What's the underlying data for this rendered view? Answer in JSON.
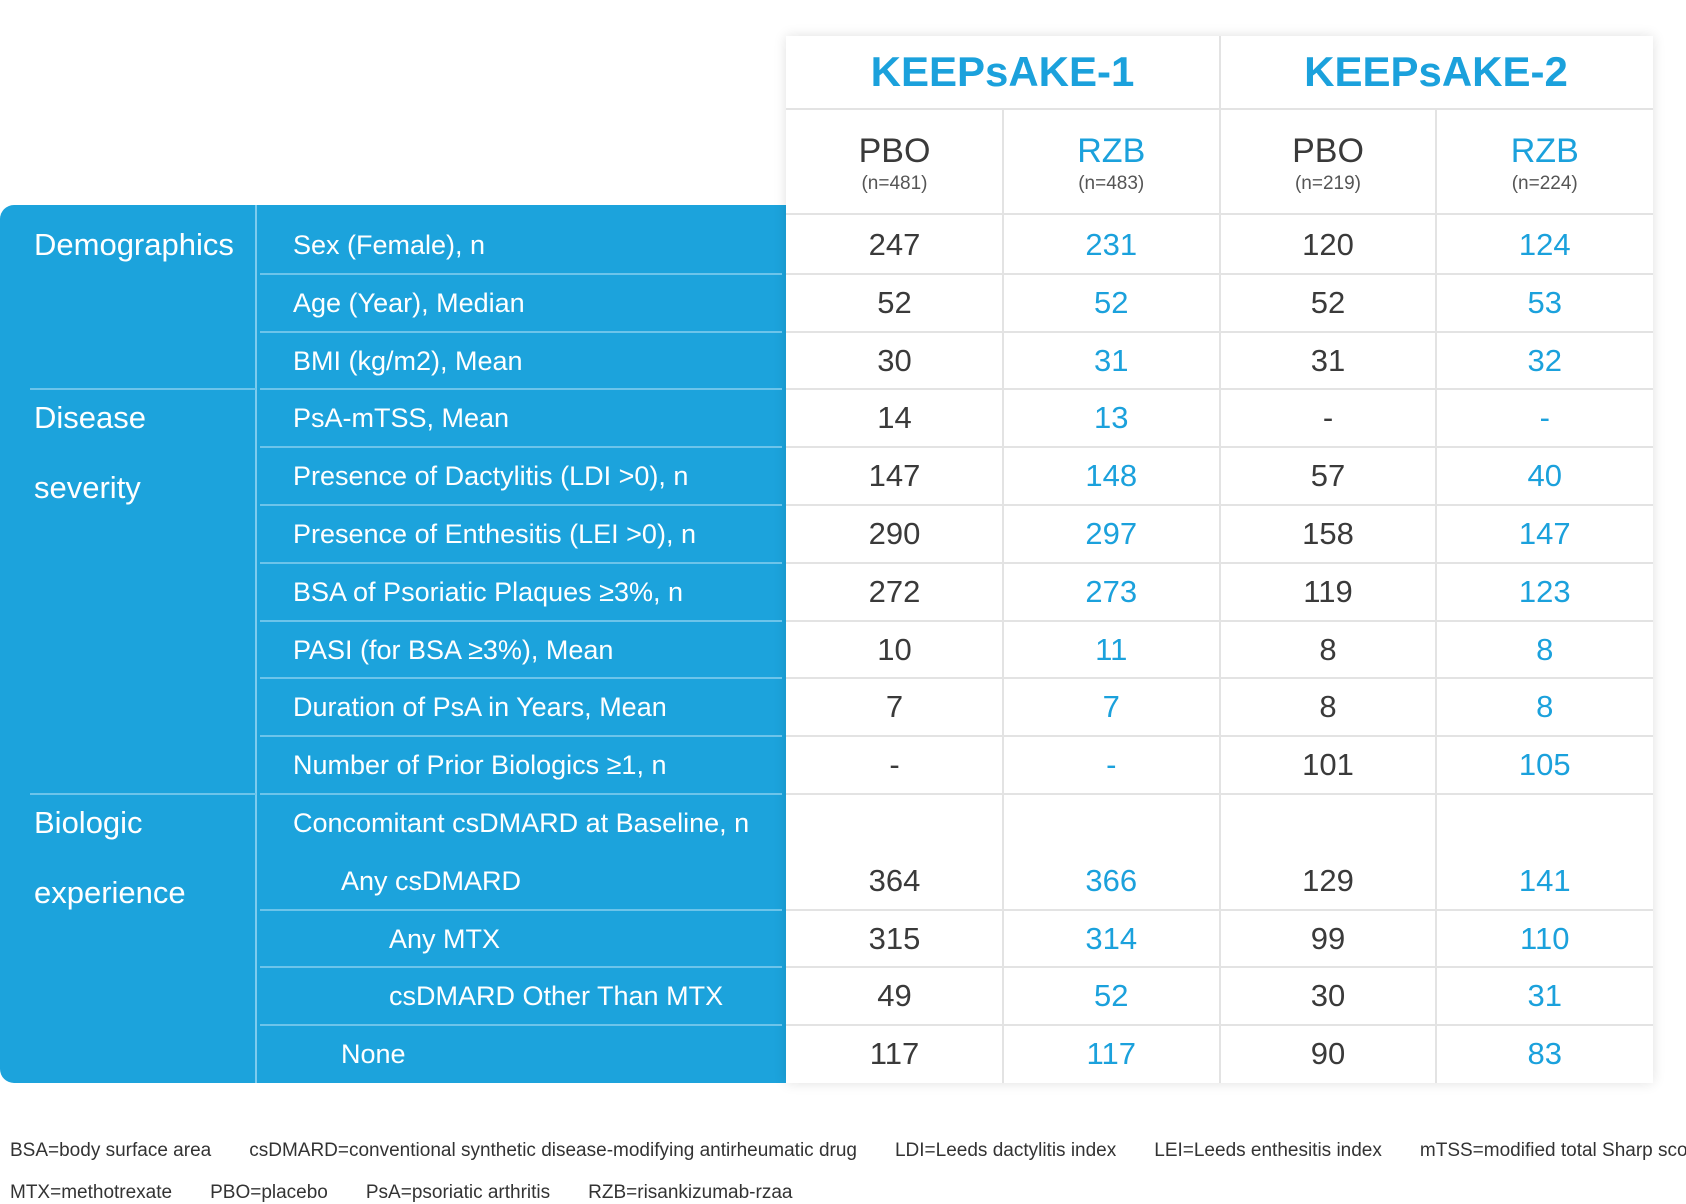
{
  "header": {
    "studies": [
      "KEEPsAKE-1",
      "KEEPsAKE-2"
    ],
    "arms": [
      {
        "name": "PBO",
        "n": "(n=481)",
        "color": "#3a3a3a"
      },
      {
        "name": "RZB",
        "n": "(n=483)",
        "color": "#1ba1dc"
      },
      {
        "name": "PBO",
        "n": "(n=219)",
        "color": "#3a3a3a"
      },
      {
        "name": "RZB",
        "n": "(n=224)",
        "color": "#1ba1dc"
      }
    ]
  },
  "table": {
    "sections": [
      {
        "title": "Demographics",
        "rows": [
          {
            "label": "Sex (Female), n",
            "indent": 0,
            "values": [
              247,
              231,
              120,
              124
            ]
          },
          {
            "label": "Age (Year), Median",
            "indent": 0,
            "values": [
              52,
              52,
              52,
              53
            ]
          },
          {
            "label": "BMI (kg/m2), Mean",
            "indent": 0,
            "values": [
              30,
              31,
              31,
              32
            ]
          }
        ]
      },
      {
        "title": "Disease severity",
        "rows": [
          {
            "label": "PsA-mTSS, Mean",
            "indent": 0,
            "values": [
              14,
              13,
              "-",
              "-"
            ]
          },
          {
            "label": "Presence of Dactylitis (LDI >0), n",
            "indent": 0,
            "values": [
              147,
              148,
              57,
              40
            ]
          },
          {
            "label": "Presence of Enthesitis (LEI >0), n",
            "indent": 0,
            "values": [
              290,
              297,
              158,
              147
            ]
          },
          {
            "label": "BSA of Psoriatic Plaques ≥3%, n",
            "indent": 0,
            "values": [
              272,
              273,
              119,
              123
            ]
          },
          {
            "label": "PASI (for BSA ≥3%), Mean",
            "indent": 0,
            "values": [
              10,
              11,
              8,
              8
            ]
          },
          {
            "label": "Duration of PsA in Years, Mean",
            "indent": 0,
            "values": [
              7,
              7,
              8,
              8
            ]
          },
          {
            "label": "Number of Prior Biologics ≥1, n",
            "indent": 0,
            "values": [
              "-",
              "-",
              101,
              105
            ]
          }
        ]
      },
      {
        "title": "Biologic experience",
        "rows": [
          {
            "label": "Concomitant csDMARD at Baseline, n",
            "indent": 0
          },
          {
            "label": "Any csDMARD",
            "indent": 1,
            "values": [
              364,
              366,
              129,
              141
            ]
          },
          {
            "label": "Any MTX",
            "indent": 2,
            "values": [
              315,
              314,
              99,
              110
            ]
          },
          {
            "label": "csDMARD Other Than MTX",
            "indent": 2,
            "values": [
              49,
              52,
              30,
              31
            ]
          },
          {
            "label": "None",
            "indent": 1,
            "values": [
              117,
              117,
              90,
              83
            ]
          }
        ]
      }
    ]
  },
  "footnotes": [
    [
      "BSA=body surface area",
      "csDMARD=conventional synthetic disease-modifying antirheumatic drug",
      "LDI=Leeds dactylitis index",
      "LEI=Leeds enthesitis index",
      "mTSS=modified total Sharp score"
    ],
    [
      "MTX=methotrexate",
      "PBO=placebo",
      "PsA=psoriatic arthritis",
      "RZB=risankizumab-rzaa"
    ]
  ]
}
